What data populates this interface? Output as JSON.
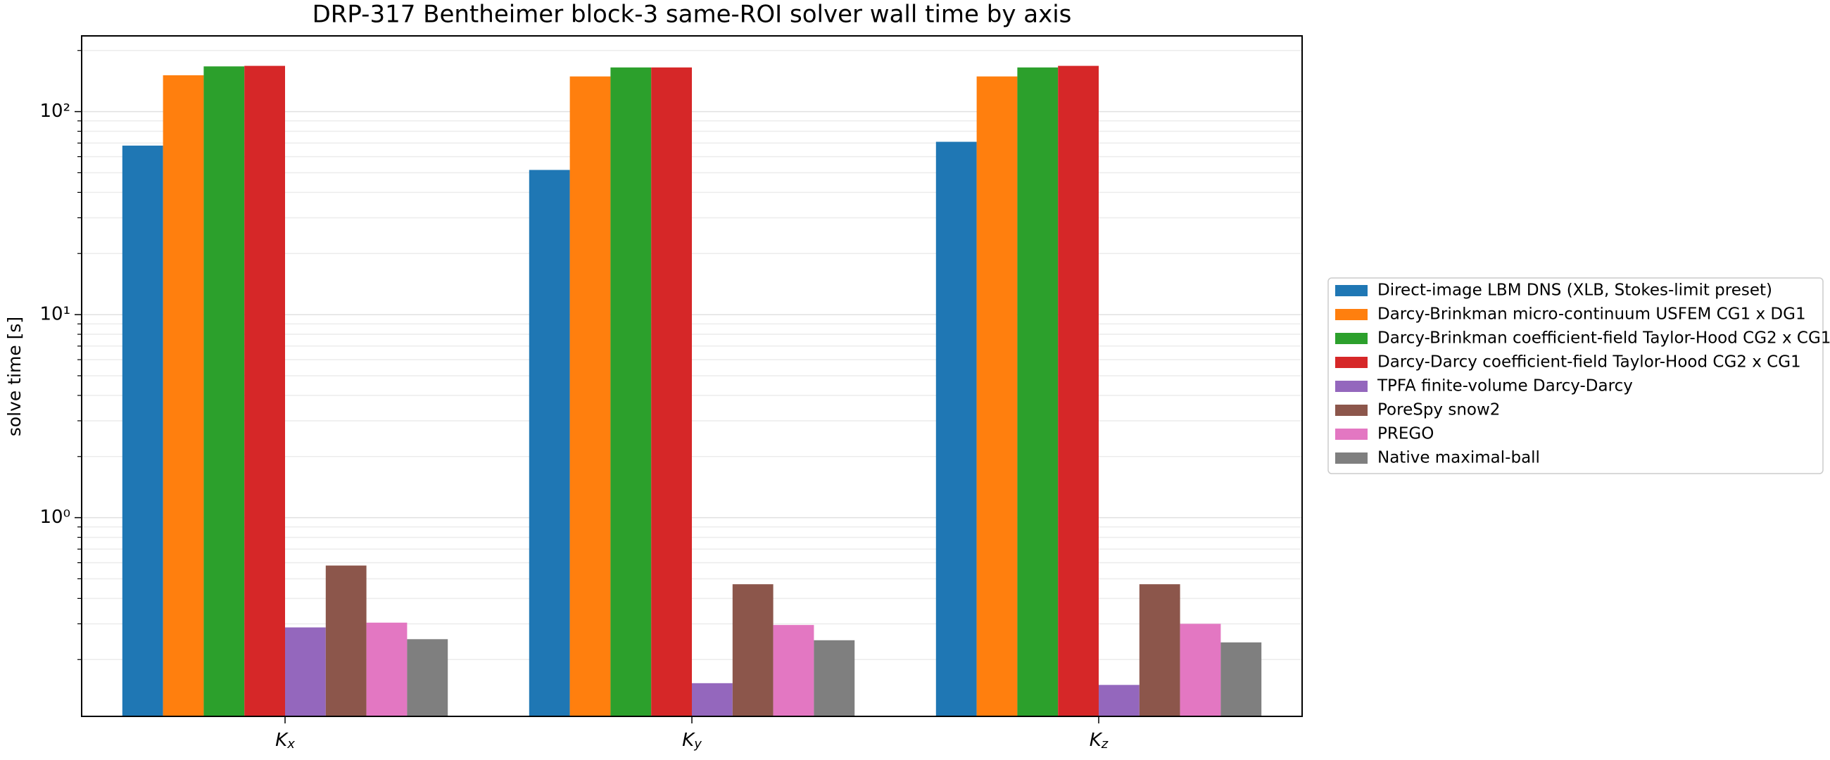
{
  "chart_data": {
    "type": "bar",
    "title": "DRP-317 Bentheimer block-3 same-ROI solver wall time by axis",
    "y_label": "solve time [s]",
    "categories": [
      "Kx",
      "Ky",
      "Kz"
    ],
    "log_scale_y": true,
    "grid": true,
    "legend_position": "right",
    "ylim": [
      0.105,
      236
    ],
    "yticks": [
      {
        "value": 1,
        "label": "10⁰"
      },
      {
        "value": 10,
        "label": "10¹"
      },
      {
        "value": 100,
        "label": "10²"
      }
    ],
    "yminorticks": [
      0.2,
      0.3,
      0.4,
      0.5,
      0.6,
      0.7,
      0.8,
      0.9,
      2,
      3,
      4,
      5,
      6,
      7,
      8,
      9,
      20,
      30,
      40,
      50,
      60,
      70,
      80,
      90,
      200
    ],
    "series": [
      {
        "name": "Direct-image LBM DNS (XLB, Stokes-limit preset)",
        "color": "#1f77b4",
        "values": [
          68,
          51.6,
          71
        ]
      },
      {
        "name": "Darcy-Brinkman micro-continuum USFEM CG1 x DG1",
        "color": "#ff7f0e",
        "values": [
          151,
          149,
          149
        ]
      },
      {
        "name": "Darcy-Brinkman coefficient-field Taylor-Hood CG2 x CG1",
        "color": "#2ca02c",
        "values": [
          167,
          165,
          165
        ]
      },
      {
        "name": "Darcy-Darcy coefficient-field Taylor-Hood CG2 x CG1",
        "color": "#d62728",
        "values": [
          168,
          165,
          168
        ]
      },
      {
        "name": "TPFA finite-volume Darcy-Darcy",
        "color": "#9467bd",
        "values": [
          0.288,
          0.153,
          0.15
        ]
      },
      {
        "name": "PoreSpy snow2",
        "color": "#8c564b",
        "values": [
          0.581,
          0.47,
          0.47
        ]
      },
      {
        "name": "PREGO",
        "color": "#e377c2",
        "values": [
          0.304,
          0.296,
          0.3
        ]
      },
      {
        "name": "Native maximal-ball",
        "color": "#7f7f7f",
        "values": [
          0.252,
          0.249,
          0.243
        ]
      }
    ]
  }
}
